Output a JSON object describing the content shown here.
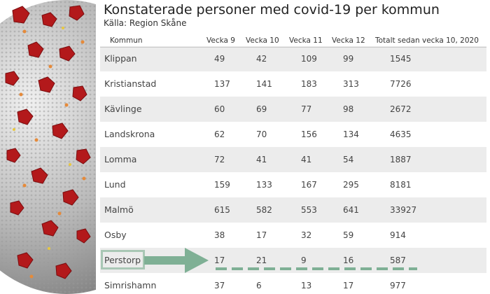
{
  "title": "Konstaterade personer med covid-19 per kommun",
  "source": "Källa: Region Skåne",
  "table": {
    "headers": [
      "Kommun",
      "Vecka 9",
      "Vecka 10",
      "Vecka 11",
      "Vecka 12",
      "Totalt sedan vecka 10, 2020"
    ],
    "rows": [
      {
        "kommun": "Klippan",
        "v9": "49",
        "v10": "42",
        "v11": "109",
        "v12": "99",
        "total": "1545"
      },
      {
        "kommun": "Kristianstad",
        "v9": "137",
        "v10": "141",
        "v11": "183",
        "v12": "313",
        "total": "7726"
      },
      {
        "kommun": "Kävlinge",
        "v9": "60",
        "v10": "69",
        "v11": "77",
        "v12": "98",
        "total": "2672"
      },
      {
        "kommun": "Landskrona",
        "v9": "62",
        "v10": "70",
        "v11": "156",
        "v12": "134",
        "total": "4635"
      },
      {
        "kommun": "Lomma",
        "v9": "72",
        "v10": "41",
        "v11": "41",
        "v12": "54",
        "total": "1887"
      },
      {
        "kommun": "Lund",
        "v9": "159",
        "v10": "133",
        "v11": "167",
        "v12": "295",
        "total": "8181"
      },
      {
        "kommun": "Malmö",
        "v9": "615",
        "v10": "582",
        "v11": "553",
        "v12": "641",
        "total": "33927"
      },
      {
        "kommun": "Osby",
        "v9": "38",
        "v10": "17",
        "v11": "32",
        "v12": "59",
        "total": "914"
      },
      {
        "kommun": "Perstorp",
        "v9": "17",
        "v10": "21",
        "v11": "9",
        "v12": "16",
        "total": "587"
      },
      {
        "kommun": "Simrishamn",
        "v9": "37",
        "v10": "6",
        "v11": "13",
        "v12": "17",
        "total": "977"
      }
    ]
  },
  "annotation": {
    "highlighted_row": "Perstorp",
    "color": "#7fb095"
  },
  "illustration": {
    "icon": "coronavirus-illustration",
    "spike_color": "#b3191b",
    "body_color": "#bdbdbd"
  }
}
